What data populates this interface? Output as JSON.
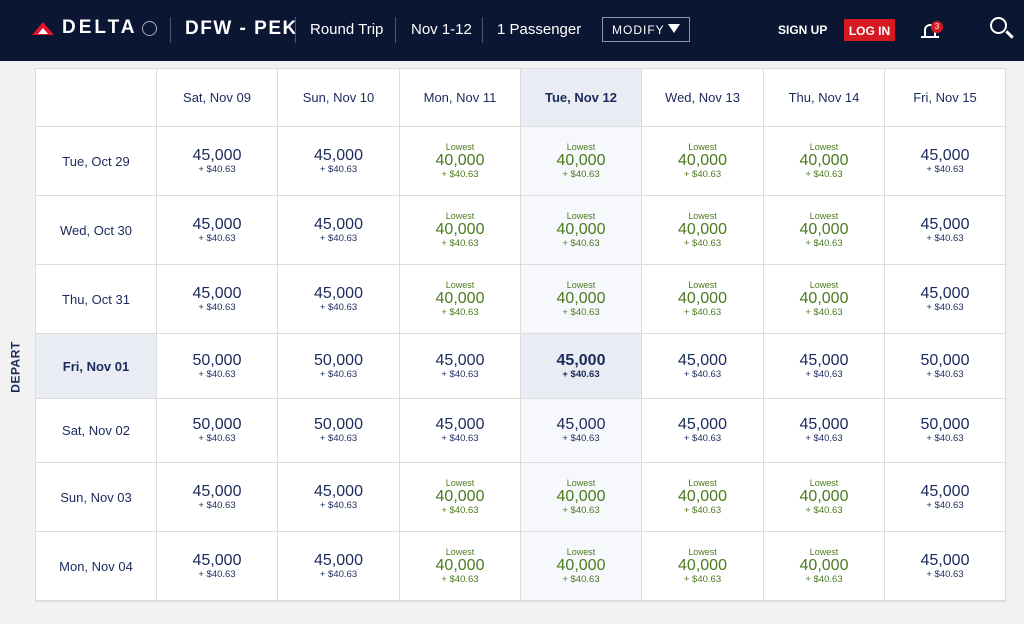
{
  "header": {
    "brand": "DELTA",
    "route": "DFW - PEK",
    "trip_type": "Round Trip",
    "dates": "Nov 1-12",
    "passengers": "1 Passenger",
    "modify_label": "MODIFY",
    "signup_label": "SIGN UP",
    "login_label": "LOG IN",
    "notification_count": "3"
  },
  "colors": {
    "header_bg": "#0b1633",
    "login_red": "#d71921",
    "lowest_green": "#4b7a1e",
    "selected_bg": "#e9ecf3"
  },
  "depart_label": "DEPART",
  "return_dates": [
    "Sat, Nov 09",
    "Sun, Nov 10",
    "Mon, Nov 11",
    "Tue, Nov 12",
    "Wed, Nov 13",
    "Thu, Nov 14",
    "Fri, Nov 15"
  ],
  "selected_return_index": 3,
  "selected_depart_index": 3,
  "lowest_label": "Lowest",
  "rows": [
    {
      "date": "Tue, Oct 29",
      "fares": [
        {
          "miles": "45,000",
          "tax": "+ $40.63",
          "lowest": false
        },
        {
          "miles": "45,000",
          "tax": "+ $40.63",
          "lowest": false
        },
        {
          "miles": "40,000",
          "tax": "+ $40.63",
          "lowest": true
        },
        {
          "miles": "40,000",
          "tax": "+ $40.63",
          "lowest": true
        },
        {
          "miles": "40,000",
          "tax": "+ $40.63",
          "lowest": true
        },
        {
          "miles": "40,000",
          "tax": "+ $40.63",
          "lowest": true
        },
        {
          "miles": "45,000",
          "tax": "+ $40.63",
          "lowest": false
        }
      ]
    },
    {
      "date": "Wed, Oct 30",
      "fares": [
        {
          "miles": "45,000",
          "tax": "+ $40.63",
          "lowest": false
        },
        {
          "miles": "45,000",
          "tax": "+ $40.63",
          "lowest": false
        },
        {
          "miles": "40,000",
          "tax": "+ $40.63",
          "lowest": true
        },
        {
          "miles": "40,000",
          "tax": "+ $40.63",
          "lowest": true
        },
        {
          "miles": "40,000",
          "tax": "+ $40.63",
          "lowest": true
        },
        {
          "miles": "40,000",
          "tax": "+ $40.63",
          "lowest": true
        },
        {
          "miles": "45,000",
          "tax": "+ $40.63",
          "lowest": false
        }
      ]
    },
    {
      "date": "Thu, Oct 31",
      "fares": [
        {
          "miles": "45,000",
          "tax": "+ $40.63",
          "lowest": false
        },
        {
          "miles": "45,000",
          "tax": "+ $40.63",
          "lowest": false
        },
        {
          "miles": "40,000",
          "tax": "+ $40.63",
          "lowest": true
        },
        {
          "miles": "40,000",
          "tax": "+ $40.63",
          "lowest": true
        },
        {
          "miles": "40,000",
          "tax": "+ $40.63",
          "lowest": true
        },
        {
          "miles": "40,000",
          "tax": "+ $40.63",
          "lowest": true
        },
        {
          "miles": "45,000",
          "tax": "+ $40.63",
          "lowest": false
        }
      ]
    },
    {
      "date": "Fri, Nov 01",
      "fares": [
        {
          "miles": "50,000",
          "tax": "+ $40.63",
          "lowest": false
        },
        {
          "miles": "50,000",
          "tax": "+ $40.63",
          "lowest": false
        },
        {
          "miles": "45,000",
          "tax": "+ $40.63",
          "lowest": false
        },
        {
          "miles": "45,000",
          "tax": "+ $40.63",
          "lowest": false
        },
        {
          "miles": "45,000",
          "tax": "+ $40.63",
          "lowest": false
        },
        {
          "miles": "45,000",
          "tax": "+ $40.63",
          "lowest": false
        },
        {
          "miles": "50,000",
          "tax": "+ $40.63",
          "lowest": false
        }
      ]
    },
    {
      "date": "Sat, Nov 02",
      "fares": [
        {
          "miles": "50,000",
          "tax": "+ $40.63",
          "lowest": false
        },
        {
          "miles": "50,000",
          "tax": "+ $40.63",
          "lowest": false
        },
        {
          "miles": "45,000",
          "tax": "+ $40.63",
          "lowest": false
        },
        {
          "miles": "45,000",
          "tax": "+ $40.63",
          "lowest": false
        },
        {
          "miles": "45,000",
          "tax": "+ $40.63",
          "lowest": false
        },
        {
          "miles": "45,000",
          "tax": "+ $40.63",
          "lowest": false
        },
        {
          "miles": "50,000",
          "tax": "+ $40.63",
          "lowest": false
        }
      ]
    },
    {
      "date": "Sun, Nov 03",
      "fares": [
        {
          "miles": "45,000",
          "tax": "+ $40.63",
          "lowest": false
        },
        {
          "miles": "45,000",
          "tax": "+ $40.63",
          "lowest": false
        },
        {
          "miles": "40,000",
          "tax": "+ $40.63",
          "lowest": true
        },
        {
          "miles": "40,000",
          "tax": "+ $40.63",
          "lowest": true
        },
        {
          "miles": "40,000",
          "tax": "+ $40.63",
          "lowest": true
        },
        {
          "miles": "40,000",
          "tax": "+ $40.63",
          "lowest": true
        },
        {
          "miles": "45,000",
          "tax": "+ $40.63",
          "lowest": false
        }
      ]
    },
    {
      "date": "Mon, Nov 04",
      "fares": [
        {
          "miles": "45,000",
          "tax": "+ $40.63",
          "lowest": false
        },
        {
          "miles": "45,000",
          "tax": "+ $40.63",
          "lowest": false
        },
        {
          "miles": "40,000",
          "tax": "+ $40.63",
          "lowest": true
        },
        {
          "miles": "40,000",
          "tax": "+ $40.63",
          "lowest": true
        },
        {
          "miles": "40,000",
          "tax": "+ $40.63",
          "lowest": true
        },
        {
          "miles": "40,000",
          "tax": "+ $40.63",
          "lowest": true
        },
        {
          "miles": "45,000",
          "tax": "+ $40.63",
          "lowest": false
        }
      ]
    }
  ]
}
